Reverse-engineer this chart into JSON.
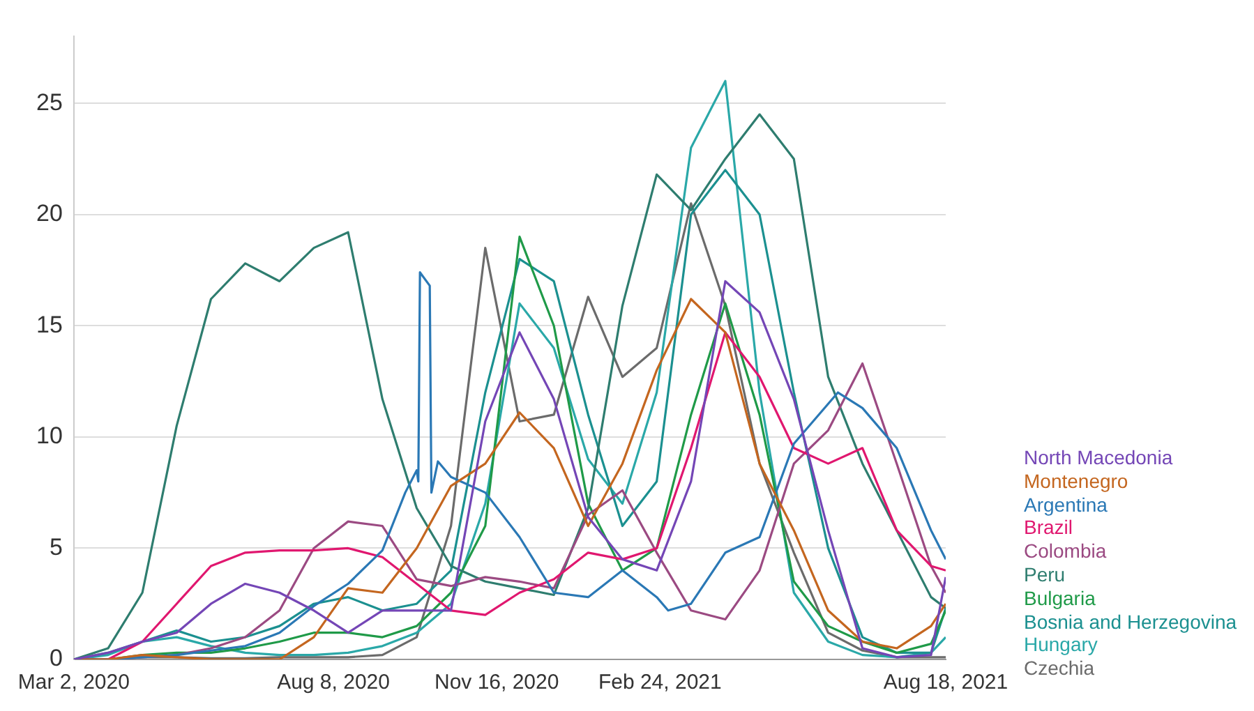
{
  "chart_data": {
    "type": "line",
    "x": [
      "2020-03-02",
      "2020-03-23",
      "2020-04-13",
      "2020-05-04",
      "2020-05-25",
      "2020-06-15",
      "2020-07-06",
      "2020-07-27",
      "2020-08-17",
      "2020-09-07",
      "2020-09-28",
      "2020-10-19",
      "2020-11-09",
      "2020-11-30",
      "2020-12-21",
      "2021-01-11",
      "2021-02-01",
      "2021-02-22",
      "2021-03-15",
      "2021-04-05",
      "2021-04-26",
      "2021-05-17",
      "2021-06-07",
      "2021-06-28",
      "2021-07-19",
      "2021-08-09",
      "2021-08-18"
    ],
    "xlim": [
      "2020-03-02",
      "2021-08-18"
    ],
    "xticks": [
      {
        "value": "2020-03-02",
        "label": "Mar 2, 2020"
      },
      {
        "value": "2020-08-08",
        "label": "Aug 8, 2020"
      },
      {
        "value": "2020-11-16",
        "label": "Nov 16, 2020"
      },
      {
        "value": "2021-02-24",
        "label": "Feb 24, 2021"
      },
      {
        "value": "2021-08-18",
        "label": "Aug 18, 2021"
      }
    ],
    "ylim": [
      0,
      28
    ],
    "yticks": [
      0,
      5,
      10,
      15,
      20,
      25
    ],
    "grid": "y",
    "legend": "right",
    "marker": "none",
    "line_style": "solid",
    "series": [
      {
        "name": "North Macedonia",
        "color": "#7446b6",
        "values": [
          0,
          0.3,
          0.8,
          1.2,
          2.5,
          3.4,
          3,
          2.2,
          1.2,
          2.2,
          2.2,
          2.2,
          10.7,
          14.7,
          11.7,
          6.4,
          4.5,
          4,
          8,
          17,
          15.6,
          11.7,
          5.8,
          0.5,
          0.1,
          0.2,
          3.7
        ]
      },
      {
        "name": "Montenegro",
        "color": "#c4661f",
        "values": [
          0,
          0,
          0.2,
          0.1,
          0,
          0,
          0,
          1,
          3.2,
          3,
          5,
          7.8,
          8.8,
          11.1,
          9.5,
          6,
          8.8,
          13,
          16.2,
          14.7,
          8.8,
          5.8,
          2.2,
          0.8,
          0.5,
          1.5,
          2.5
        ]
      },
      {
        "name": "Argentina",
        "color": "#2a78b5",
        "x": [
          "2020-03-02",
          "2020-03-23",
          "2020-04-13",
          "2020-05-04",
          "2020-05-25",
          "2020-06-15",
          "2020-07-06",
          "2020-07-27",
          "2020-08-17",
          "2020-09-07",
          "2020-09-21",
          "2020-09-28",
          "2020-09-29",
          "2020-09-30",
          "2020-10-06",
          "2020-10-07",
          "2020-10-11",
          "2020-10-19",
          "2020-11-09",
          "2020-11-30",
          "2020-12-21",
          "2021-01-11",
          "2021-02-01",
          "2021-02-22",
          "2021-03-01",
          "2021-03-15",
          "2021-04-05",
          "2021-04-26",
          "2021-05-17",
          "2021-06-13",
          "2021-06-28",
          "2021-07-19",
          "2021-08-09",
          "2021-08-18"
        ],
        "values": [
          0,
          0,
          0.1,
          0.2,
          0.4,
          0.6,
          1.2,
          2.4,
          3.4,
          4.9,
          7.5,
          8.5,
          8,
          17.4,
          16.8,
          7.5,
          8.9,
          8.2,
          7.5,
          5.5,
          3,
          2.8,
          4,
          2.8,
          2.2,
          2.5,
          4.8,
          5.5,
          9.7,
          12,
          11.3,
          9.5,
          5.8,
          4.5
        ]
      },
      {
        "name": "Brazil",
        "color": "#e0176f",
        "values": [
          0,
          0,
          0.8,
          2.5,
          4.2,
          4.8,
          4.9,
          4.9,
          5,
          4.6,
          3.4,
          2.2,
          2,
          3,
          3.6,
          4.8,
          4.5,
          5,
          9.5,
          14.7,
          12.7,
          9.5,
          8.8,
          9.5,
          5.8,
          4.2,
          4
        ]
      },
      {
        "name": "Colombia",
        "color": "#9b4a82",
        "values": [
          0,
          0,
          0.1,
          0.2,
          0.5,
          1,
          2.2,
          5,
          6.2,
          6,
          3.6,
          3.3,
          3.7,
          3.5,
          3.2,
          6.5,
          7.6,
          4.8,
          2.2,
          1.8,
          4,
          8.8,
          10.3,
          13.3,
          8.8,
          4.2,
          3
        ]
      },
      {
        "name": "Peru",
        "color": "#2e7d6f",
        "values": [
          0,
          0.5,
          3,
          10.5,
          16.2,
          17.8,
          17,
          18.5,
          19.2,
          11.7,
          6.8,
          4.2,
          3.5,
          3.2,
          2.9,
          6.8,
          15.9,
          21.8,
          20.2,
          22.5,
          24.5,
          22.5,
          12.7,
          8.8,
          5.8,
          2.8,
          2.3
        ]
      },
      {
        "name": "Bulgaria",
        "color": "#1f9a48",
        "values": [
          0,
          0,
          0.2,
          0.3,
          0.3,
          0.5,
          0.8,
          1.2,
          1.2,
          1,
          1.5,
          3,
          6,
          19,
          15,
          7,
          4,
          5,
          11,
          16,
          11,
          3.5,
          1.5,
          0.8,
          0.3,
          0.7,
          2.2
        ]
      },
      {
        "name": "Bosnia and Herzegovina",
        "color": "#1b9090",
        "values": [
          0,
          0.3,
          0.8,
          1.3,
          0.8,
          1,
          1.5,
          2.5,
          2.8,
          2.2,
          2.5,
          4,
          12,
          18,
          17,
          11,
          6,
          8,
          20,
          22,
          20,
          12,
          5,
          1,
          0.3,
          0.3,
          2.3
        ]
      },
      {
        "name": "Hungary",
        "color": "#2aa8a8",
        "values": [
          0,
          0.2,
          0.8,
          1,
          0.6,
          0.3,
          0.2,
          0.2,
          0.3,
          0.6,
          1.2,
          2.5,
          7,
          16,
          14,
          9,
          7,
          12,
          23,
          26,
          12,
          3,
          0.8,
          0.2,
          0.1,
          0.3,
          1
        ]
      },
      {
        "name": "Czechia",
        "color": "#6b6b6b",
        "values": [
          0,
          0,
          0.1,
          0.1,
          0.05,
          0.05,
          0.1,
          0.1,
          0.1,
          0.2,
          1,
          6,
          18.5,
          10.7,
          11,
          16.3,
          12.7,
          14,
          20.5,
          15.9,
          8.8,
          4.8,
          1.2,
          0.4,
          0.1,
          0.1,
          0.1
        ]
      }
    ]
  }
}
